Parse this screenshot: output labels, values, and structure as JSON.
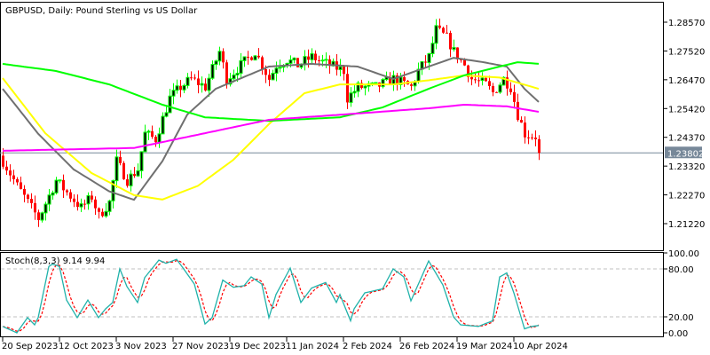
{
  "chart_data": [
    {
      "type": "candlestick",
      "title": "GBPUSD, Daily:  Pound Sterling vs US Dollar",
      "bars": 152,
      "ylim": [
        1.205,
        1.2935
      ],
      "y_ticks": [
        "1.28570",
        "1.27520",
        "1.26470",
        "1.25420",
        "1.24370",
        "1.23320",
        "1.22270",
        "1.21220"
      ],
      "y_tick_values": [
        1.2857,
        1.2752,
        1.2647,
        1.2542,
        1.2437,
        1.2332,
        1.2227,
        1.2122
      ],
      "last_price": 1.23802,
      "last_price_label": "1.23802",
      "x_ticks": [
        {
          "bar": 0,
          "label": "20 Sep 2023"
        },
        {
          "bar": 16,
          "label": "12 Oct 2023"
        },
        {
          "bar": 32,
          "label": "3 Nov 2023"
        },
        {
          "bar": 48,
          "label": "27 Nov 2023"
        },
        {
          "bar": 64,
          "label": "19 Dec 2023"
        },
        {
          "bar": 80,
          "label": "11 Jan 2024"
        },
        {
          "bar": 96,
          "label": "2 Feb 2024"
        },
        {
          "bar": 112,
          "label": "26 Feb 2024"
        },
        {
          "bar": 128,
          "label": "19 Mar 2024"
        },
        {
          "bar": 144,
          "label": "10 Apr 2024"
        }
      ],
      "close_anchors": [
        [
          0,
          1.235
        ],
        [
          4,
          1.226
        ],
        [
          10,
          1.214
        ],
        [
          15,
          1.228
        ],
        [
          17,
          1.225
        ],
        [
          22,
          1.218
        ],
        [
          25,
          1.222
        ],
        [
          27,
          1.215
        ],
        [
          30,
          1.22
        ],
        [
          32,
          1.235
        ],
        [
          35,
          1.228
        ],
        [
          38,
          1.232
        ],
        [
          40,
          1.245
        ],
        [
          43,
          1.243
        ],
        [
          47,
          1.258
        ],
        [
          50,
          1.262
        ],
        [
          53,
          1.265
        ],
        [
          57,
          1.262
        ],
        [
          61,
          1.275
        ],
        [
          63,
          1.265
        ],
        [
          67,
          1.27
        ],
        [
          71,
          1.275
        ],
        [
          75,
          1.265
        ],
        [
          77,
          1.27
        ],
        [
          80,
          1.272
        ],
        [
          83,
          1.27
        ],
        [
          87,
          1.273
        ],
        [
          92,
          1.27
        ],
        [
          96,
          1.268
        ],
        [
          97,
          1.258
        ],
        [
          100,
          1.262
        ],
        [
          105,
          1.262
        ],
        [
          110,
          1.265
        ],
        [
          115,
          1.262
        ],
        [
          117,
          1.268
        ],
        [
          120,
          1.273
        ],
        [
          122,
          1.283
        ],
        [
          125,
          1.28
        ],
        [
          127,
          1.275
        ],
        [
          130,
          1.27
        ],
        [
          132,
          1.265
        ],
        [
          136,
          1.263
        ],
        [
          138,
          1.26
        ],
        [
          141,
          1.265
        ],
        [
          143,
          1.262
        ],
        [
          145,
          1.252
        ],
        [
          147,
          1.245
        ],
        [
          150,
          1.244
        ],
        [
          151,
          1.238
        ]
      ],
      "bull_color": "#00ff00",
      "bear_color": "#ff0000",
      "moving_averages": [
        {
          "name": "MA gray",
          "color": "#707070",
          "points": [
            [
              0,
              1.2614
            ],
            [
              10,
              1.245
            ],
            [
              20,
              1.232
            ],
            [
              30,
              1.224
            ],
            [
              37,
              1.2209
            ],
            [
              45,
              1.235
            ],
            [
              52,
              1.252
            ],
            [
              60,
              1.2614
            ],
            [
              75,
              1.2695
            ],
            [
              87,
              1.2705
            ],
            [
              100,
              1.2695
            ],
            [
              110,
              1.265
            ],
            [
              120,
              1.2695
            ],
            [
              127,
              1.2727
            ],
            [
              135,
              1.2712
            ],
            [
              142,
              1.2695
            ],
            [
              147,
              1.2614
            ],
            [
              151,
              1.2566
            ]
          ]
        },
        {
          "name": "MA yellow",
          "color": "#ffff00",
          "points": [
            [
              0,
              1.2653
            ],
            [
              12,
              1.2452
            ],
            [
              25,
              1.2307
            ],
            [
              37,
              1.2226
            ],
            [
              45,
              1.221
            ],
            [
              55,
              1.226
            ],
            [
              65,
              1.2355
            ],
            [
              75,
              1.2485
            ],
            [
              85,
              1.2598
            ],
            [
              95,
              1.263
            ],
            [
              110,
              1.263
            ],
            [
              120,
              1.2645
            ],
            [
              130,
              1.2663
            ],
            [
              140,
              1.2655
            ],
            [
              151,
              1.2614
            ]
          ]
        },
        {
          "name": "MA green",
          "color": "#00ff00",
          "points": [
            [
              0,
              1.2705
            ],
            [
              15,
              1.2679
            ],
            [
              30,
              1.263
            ],
            [
              45,
              1.2556
            ],
            [
              57,
              1.251
            ],
            [
              75,
              1.2497
            ],
            [
              95,
              1.251
            ],
            [
              107,
              1.2546
            ],
            [
              120,
              1.2614
            ],
            [
              130,
              1.2663
            ],
            [
              140,
              1.2695
            ],
            [
              145,
              1.2711
            ],
            [
              151,
              1.2705
            ]
          ]
        },
        {
          "name": "MA magenta",
          "color": "#ff00ff",
          "points": [
            [
              0,
              1.2388
            ],
            [
              37,
              1.2398
            ],
            [
              57,
              1.2452
            ],
            [
              75,
              1.2501
            ],
            [
              100,
              1.2524
            ],
            [
              120,
              1.2543
            ],
            [
              130,
              1.2556
            ],
            [
              142,
              1.255
            ],
            [
              151,
              1.253
            ]
          ]
        }
      ]
    },
    {
      "type": "line",
      "title": "Stoch(8,3,3) 9.14 9.94",
      "ylim": [
        0,
        100
      ],
      "y_ticks": [
        "100.00",
        "80.00",
        "20.00",
        "0.00"
      ],
      "y_tick_values": [
        100,
        80,
        20,
        0
      ],
      "levels": [
        80,
        20
      ],
      "k_color": "#20b2aa",
      "d_color": "#ff0000",
      "k_points": [
        [
          0,
          8
        ],
        [
          4,
          0
        ],
        [
          7,
          19
        ],
        [
          9,
          10
        ],
        [
          10,
          19
        ],
        [
          13,
          83
        ],
        [
          14,
          86
        ],
        [
          16,
          83
        ],
        [
          18,
          41
        ],
        [
          21,
          19
        ],
        [
          24,
          41
        ],
        [
          27,
          19
        ],
        [
          29,
          30
        ],
        [
          31,
          38
        ],
        [
          33,
          80
        ],
        [
          35,
          58
        ],
        [
          38,
          38
        ],
        [
          40,
          69
        ],
        [
          44,
          91
        ],
        [
          46,
          87
        ],
        [
          49,
          92
        ],
        [
          51,
          80
        ],
        [
          54,
          61
        ],
        [
          57,
          11
        ],
        [
          59,
          19
        ],
        [
          62,
          66
        ],
        [
          65,
          57
        ],
        [
          68,
          59
        ],
        [
          70,
          70
        ],
        [
          73,
          61
        ],
        [
          75,
          19
        ],
        [
          77,
          48
        ],
        [
          81,
          81
        ],
        [
          84,
          38
        ],
        [
          87,
          56
        ],
        [
          91,
          63
        ],
        [
          94,
          38
        ],
        [
          95,
          48
        ],
        [
          98,
          15
        ],
        [
          99,
          30
        ],
        [
          102,
          50
        ],
        [
          107,
          55
        ],
        [
          110,
          80
        ],
        [
          113,
          70
        ],
        [
          115,
          40
        ],
        [
          120,
          90
        ],
        [
          124,
          60
        ],
        [
          127,
          20
        ],
        [
          129,
          10
        ],
        [
          134,
          8
        ],
        [
          138,
          15
        ],
        [
          140,
          70
        ],
        [
          142,
          75
        ],
        [
          144,
          50
        ],
        [
          147,
          5
        ],
        [
          149,
          8
        ],
        [
          151,
          9.14
        ]
      ]
    }
  ]
}
